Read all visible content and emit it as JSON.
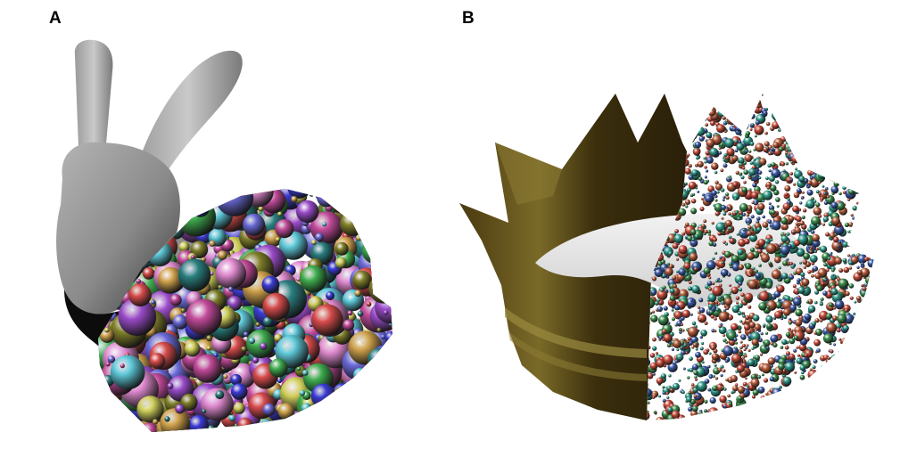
{
  "panels": [
    {
      "label": "A",
      "subject": "bunny-sphere-packing"
    },
    {
      "label": "B",
      "subject": "crown-sphere-packing"
    }
  ],
  "colors": {
    "bunny_gray": "#8c8c8c",
    "crown_gold": "#6b5a1c",
    "sphere_palette_a": [
      "#3b3bd6",
      "#c24a9a",
      "#3fae4f",
      "#d0a24c",
      "#5ec8d8",
      "#9a4bc9",
      "#d84b4b",
      "#7f7f2a",
      "#e08ad0",
      "#2a7f7f",
      "#cfcf5a",
      "#6a6ad8"
    ],
    "sphere_palette_b": [
      "#c94a3a",
      "#3a8a4a",
      "#3a5aa8",
      "#2f9a8a",
      "#b85a3a"
    ]
  }
}
